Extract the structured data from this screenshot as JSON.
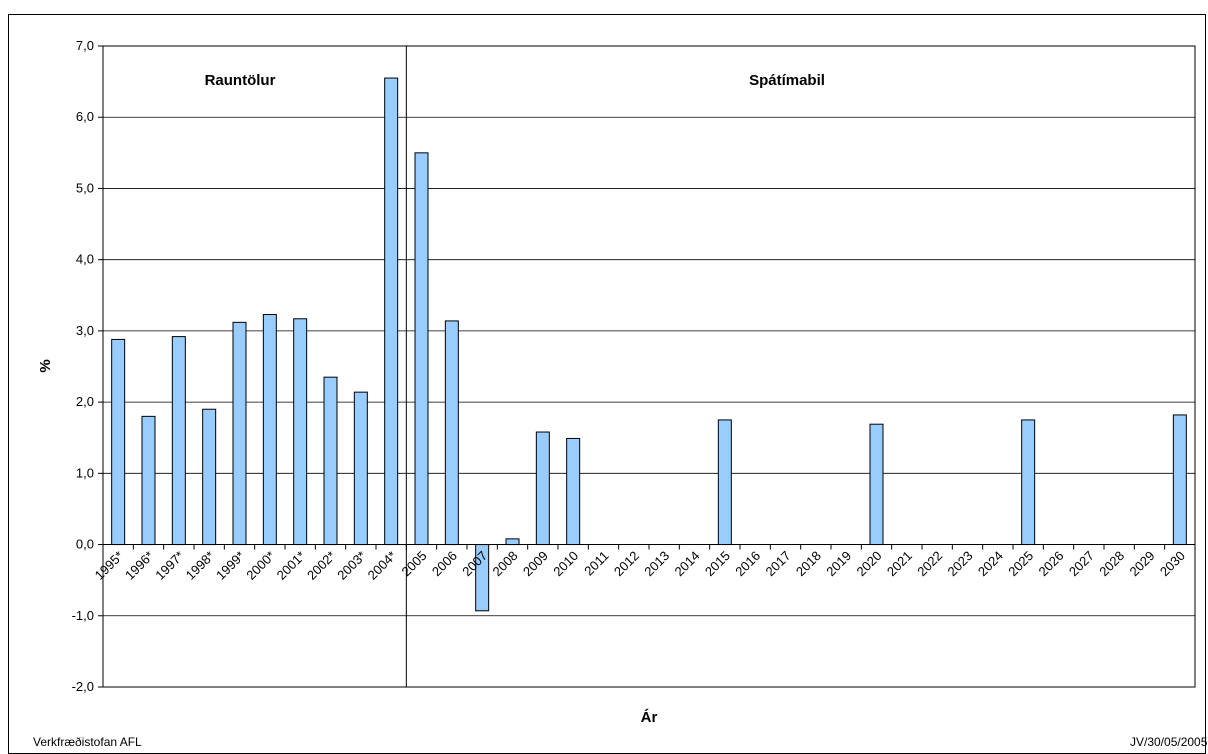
{
  "chart_data": {
    "type": "bar",
    "title": "",
    "xlabel": "Ár",
    "ylabel": "%",
    "ylim": [
      -2.0,
      7.0
    ],
    "yticks": [
      "-2,0",
      "-1,0",
      "0,0",
      "1,0",
      "2,0",
      "3,0",
      "4,0",
      "5,0",
      "6,0",
      "7,0"
    ],
    "grid": true,
    "categories": [
      "1995*",
      "1996*",
      "1997*",
      "1998*",
      "1999*",
      "2000*",
      "2001*",
      "2002*",
      "2003*",
      "2004*",
      "2005",
      "2006",
      "2007",
      "2008",
      "2009",
      "2010",
      "2011",
      "2012",
      "2013",
      "2014",
      "2015",
      "2016",
      "2017",
      "2018",
      "2019",
      "2020",
      "2021",
      "2022",
      "2023",
      "2024",
      "2025",
      "2026",
      "2027",
      "2028",
      "2029",
      "2030"
    ],
    "values": [
      2.88,
      1.8,
      2.92,
      1.9,
      3.12,
      3.23,
      3.17,
      2.35,
      2.14,
      6.55,
      5.5,
      3.14,
      -0.93,
      0.08,
      1.58,
      1.49,
      null,
      null,
      null,
      null,
      1.75,
      null,
      null,
      null,
      null,
      1.69,
      null,
      null,
      null,
      null,
      1.75,
      null,
      null,
      null,
      null,
      1.82
    ],
    "bar_color": "#99ccff",
    "divider_after_index": 9,
    "annotations": [
      "Rauntölur",
      "Spátímabil"
    ]
  },
  "footer": {
    "left": "Verkfræðistofan AFL",
    "right": "JV/30/05/2005"
  }
}
